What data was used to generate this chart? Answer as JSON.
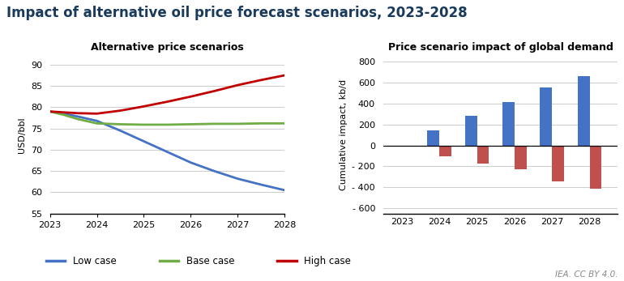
{
  "title": "Impact of alternative oil price forecast scenarios, 2023-2028",
  "title_fontsize": 12,
  "title_color": "#1a3a5c",
  "left_title": "Alternative price scenarios",
  "right_title": "Price scenario impact of global demand",
  "left_ylabel": "USD/bbl",
  "right_ylabel": "Cumulative impact, kb/d",
  "line_years": [
    2023,
    2023.3,
    2023.6,
    2024,
    2024.5,
    2025,
    2025.5,
    2026,
    2026.5,
    2027,
    2027.5,
    2028
  ],
  "low_case": [
    79.0,
    78.5,
    77.8,
    76.8,
    74.5,
    72.0,
    69.5,
    67.0,
    65.0,
    63.2,
    61.8,
    60.5
  ],
  "base_case": [
    79.0,
    78.2,
    77.2,
    76.2,
    76.0,
    75.9,
    75.9,
    76.0,
    76.1,
    76.1,
    76.2,
    76.2
  ],
  "high_case": [
    79.0,
    78.8,
    78.6,
    78.5,
    79.2,
    80.2,
    81.3,
    82.5,
    83.8,
    85.2,
    86.4,
    87.5
  ],
  "low_color": "#4472c4",
  "base_color": "#70ad47",
  "high_color": "#c00000",
  "left_ylim": [
    55,
    92
  ],
  "left_yticks": [
    55,
    60,
    65,
    70,
    75,
    80,
    85,
    90
  ],
  "bar_years": [
    2023,
    2024,
    2025,
    2026,
    2027,
    2028
  ],
  "low_bars": [
    0,
    140,
    280,
    415,
    550,
    660
  ],
  "high_bars": [
    0,
    -105,
    -175,
    -230,
    -340,
    -415
  ],
  "bar_low_color": "#4472c4",
  "bar_high_color": "#c0504d",
  "right_ylim": [
    -650,
    850
  ],
  "right_yticks": [
    -600,
    -400,
    -200,
    0,
    200,
    400,
    600,
    800
  ],
  "legend_labels": [
    "Low case",
    "Base case",
    "High case"
  ],
  "attribution": "IEA. CC BY 4.0.",
  "background_color": "#ffffff",
  "grid_color": "#cccccc"
}
